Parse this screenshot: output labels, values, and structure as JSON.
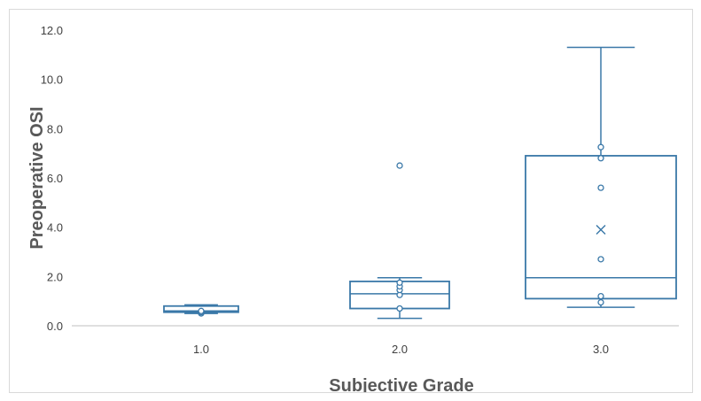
{
  "chart_data": {
    "type": "box",
    "title": "",
    "xlabel": "Subjective Grade",
    "ylabel": "Preoperative OSI",
    "ylim": [
      0,
      12
    ],
    "yticks": [
      "0.0",
      "2.0",
      "4.0",
      "6.0",
      "8.0",
      "10.0",
      "12.0"
    ],
    "categories": [
      "1.0",
      "2.0",
      "3.0"
    ],
    "grid": false,
    "colors": {
      "box": "#3a78a8",
      "text": "#404040",
      "axis_title": "#595959"
    },
    "boxes": [
      {
        "category": "1.0",
        "whisker_low": 0.5,
        "q1": 0.55,
        "median": 0.6,
        "q3": 0.8,
        "whisker_high": 0.85,
        "mean": null,
        "points": [
          0.5,
          0.55,
          0.6
        ]
      },
      {
        "category": "2.0",
        "whisker_low": 0.3,
        "q1": 0.7,
        "median": 1.3,
        "q3": 1.8,
        "whisker_high": 1.95,
        "mean": null,
        "points": [
          0.7,
          1.25,
          1.45,
          1.6,
          1.75,
          6.5
        ]
      },
      {
        "category": "3.0",
        "whisker_low": 0.75,
        "q1": 1.1,
        "median": 1.95,
        "q3": 6.9,
        "whisker_high": 11.3,
        "mean": 3.9,
        "points": [
          0.95,
          1.2,
          2.7,
          5.6,
          6.8,
          7.25
        ]
      }
    ]
  }
}
